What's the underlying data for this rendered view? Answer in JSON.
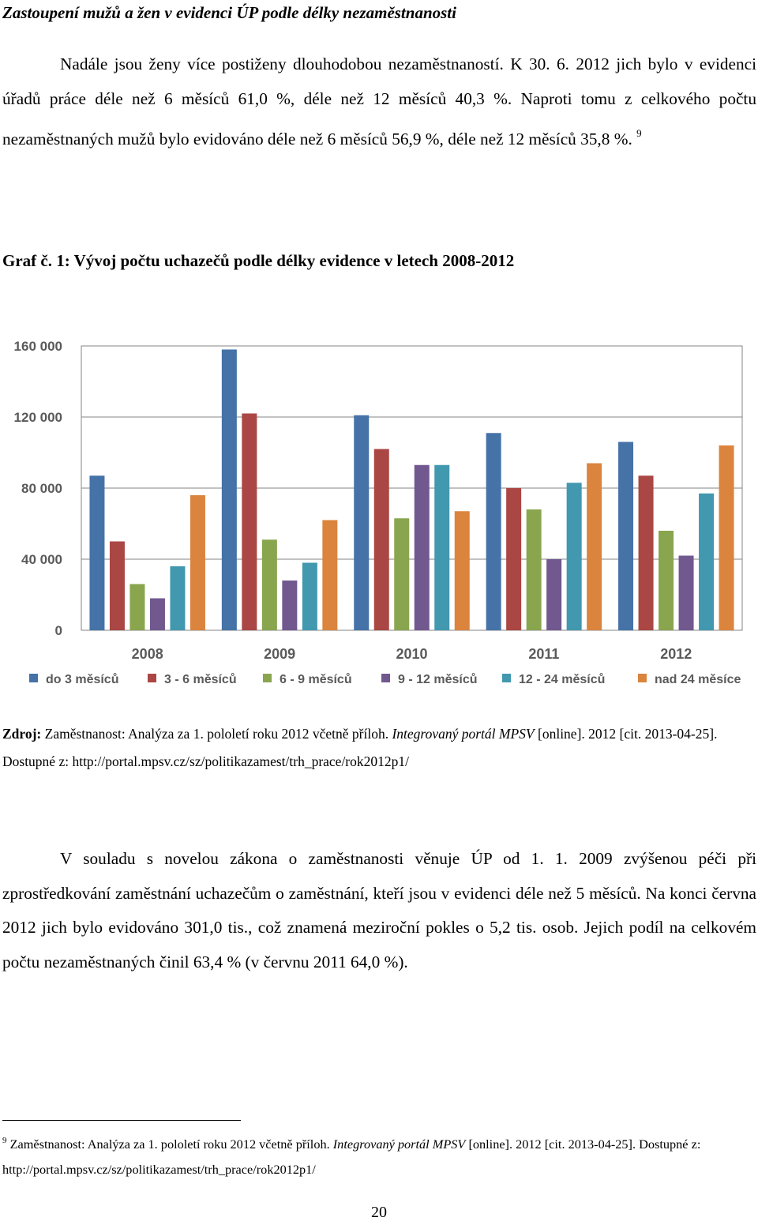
{
  "heading": "Zastoupení mužů a žen v evidenci ÚP podle délky nezaměstnanosti",
  "paragraph1": {
    "text": "Nadále jsou ženy více postiženy dlouhodobou nezaměstnaností. K 30. 6. 2012 jich bylo v evidenci úřadů práce déle než 6 měsíců 61,0 %, déle než 12 měsíců 40,3 %. Naproti tomu z celkového počtu nezaměstnaných mužů bylo evidováno déle než 6 měsíců 56,9 %, déle než 12 měsíců 35,8 %.",
    "footnote_ref": "9"
  },
  "figure_caption": "Graf č. 1: Vývoj počtu uchazečů podle délky evidence v letech 2008-2012",
  "chart_data": {
    "type": "bar",
    "title": "Vývoj počtu uchazečů podle délky evidence v letech 2008-2012",
    "categories": [
      "2008",
      "2009",
      "2010",
      "2011",
      "2012"
    ],
    "ylim": [
      0,
      160000
    ],
    "yticks": [
      0,
      40000,
      80000,
      120000,
      160000
    ],
    "ytick_labels": [
      "0",
      "40 000",
      "80 000",
      "120 000",
      "160 000"
    ],
    "grid": true,
    "legend_position": "bottom",
    "series": [
      {
        "name": "do 3 měsíců",
        "color": "#4572a7",
        "values": [
          87000,
          158000,
          121000,
          111000,
          106000
        ]
      },
      {
        "name": "3 - 6 měsíců",
        "color": "#aa4643",
        "values": [
          50000,
          122000,
          102000,
          80000,
          87000
        ]
      },
      {
        "name": "6 - 9 měsíců",
        "color": "#89a54e",
        "values": [
          26000,
          51000,
          63000,
          68000,
          56000
        ]
      },
      {
        "name": "9 - 12 měsíců",
        "color": "#71588f",
        "values": [
          18000,
          28000,
          93000,
          40000,
          42000
        ]
      },
      {
        "name": "12 - 24 měsíců",
        "color": "#4198af",
        "values": [
          36000,
          38000,
          93000,
          83000,
          77000
        ]
      },
      {
        "name": "nad 24 měsíce",
        "color": "#db843d",
        "values": [
          76000,
          62000,
          67000,
          94000,
          104000
        ]
      }
    ]
  },
  "source": {
    "label": "Zdroj:",
    "text1": " Zaměstnanost: Analýza za 1. pololetí roku 2012 včetně příloh. ",
    "portal": "Integrovaný portál MPSV",
    "text2": " [online]. 2012 [cit. 2013-04-25]. Dostupné z: http://portal.mpsv.cz/sz/politikazamest/trh_prace/rok2012p1/"
  },
  "paragraph2": "V souladu s novelou zákona o zaměstnanosti věnuje ÚP od 1. 1. 2009 zvýšenou péči při zprostředkování zaměstnání uchazečům o zaměstnání, kteří jsou v evidenci déle než 5 měsíců. Na konci června 2012 jich bylo evidováno 301,0 tis., což znamená meziroční pokles o 5,2 tis. osob. Jejich podíl na celkovém počtu nezaměstnaných činil 63,4 % (v červnu 2011 64,0 %).",
  "footnote": {
    "number": "9",
    "text1": " Zaměstnanost: Analýza za 1. pololetí roku 2012 včetně příloh. ",
    "portal": "Integrovaný portál MPSV",
    "text2": " [online]. 2012 [cit. 2013-04-25]. Dostupné z: http://portal.mpsv.cz/sz/politikazamest/trh_prace/rok2012p1/"
  },
  "page_number": "20"
}
